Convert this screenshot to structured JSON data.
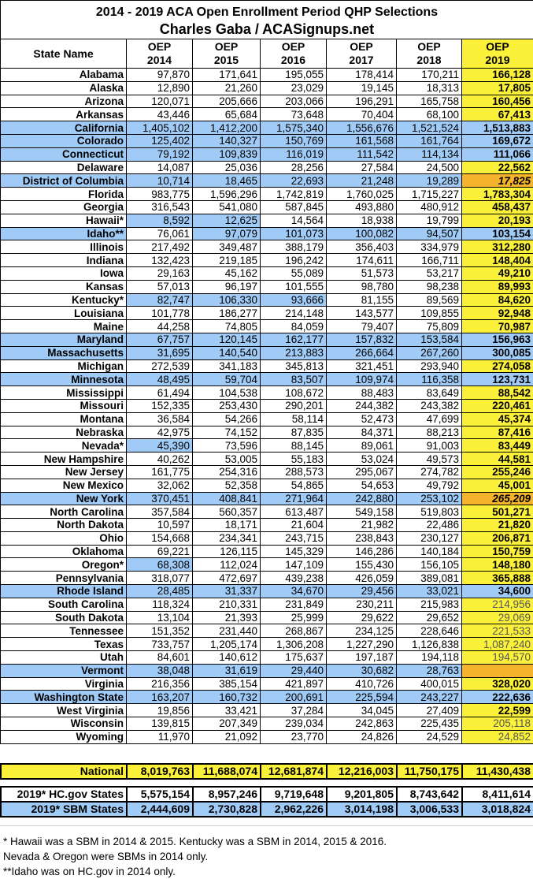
{
  "title": "2014 - 2019 ACA Open Enrollment Period QHP Selections",
  "subtitle": "Charles Gaba / ACASignups.net",
  "colors": {
    "sbm_blue": "#a0cbf7",
    "highlight_yellow": "#fbf13a",
    "estimate_orange": "#f6b42e"
  },
  "columns": [
    "State Name",
    "OEP 2014",
    "OEP 2015",
    "OEP 2016",
    "OEP 2017",
    "OEP 2018",
    "OEP 2019"
  ],
  "rows": [
    {
      "state": "Alabama",
      "v": [
        "97,870",
        "171,641",
        "195,055",
        "178,414",
        "170,211",
        "166,128"
      ],
      "s2019": "bold"
    },
    {
      "state": "Alaska",
      "v": [
        "12,890",
        "21,260",
        "23,029",
        "19,145",
        "18,313",
        "17,805"
      ],
      "s2019": "bold"
    },
    {
      "state": "Arizona",
      "v": [
        "120,071",
        "205,666",
        "203,066",
        "196,291",
        "165,758",
        "160,456"
      ],
      "s2019": "bold"
    },
    {
      "state": "Arkansas",
      "v": [
        "43,446",
        "65,684",
        "73,648",
        "70,404",
        "68,100",
        "67,413"
      ],
      "s2019": "bold"
    },
    {
      "state": "California",
      "v": [
        "1,405,102",
        "1,412,200",
        "1,575,340",
        "1,556,676",
        "1,521,524",
        "1,513,883"
      ],
      "sbm": true,
      "s2019": "sbm"
    },
    {
      "state": "Colorado",
      "v": [
        "125,402",
        "140,327",
        "150,769",
        "161,568",
        "161,764",
        "169,672"
      ],
      "sbm": true,
      "s2019": "sbm"
    },
    {
      "state": "Connecticut",
      "v": [
        "79,192",
        "109,839",
        "116,019",
        "111,542",
        "114,134",
        "111,066"
      ],
      "sbm": true,
      "s2019": "sbm"
    },
    {
      "state": "Delaware",
      "v": [
        "14,087",
        "25,036",
        "28,256",
        "27,584",
        "24,500",
        "22,562"
      ],
      "s2019": "bold"
    },
    {
      "state": "District of Columbia",
      "v": [
        "10,714",
        "18,465",
        "22,693",
        "21,248",
        "19,289",
        "17,825"
      ],
      "sbm": true,
      "s2019": "orange"
    },
    {
      "state": "Florida",
      "v": [
        "983,775",
        "1,596,296",
        "1,742,819",
        "1,760,025",
        "1,715,227",
        "1,783,304"
      ],
      "s2019": "bold"
    },
    {
      "state": "Georgia",
      "v": [
        "316,543",
        "541,080",
        "587,845",
        "493,880",
        "480,912",
        "458,437"
      ],
      "s2019": "bold"
    },
    {
      "state": "Hawaii*",
      "v": [
        "8,592",
        "12,625",
        "14,564",
        "18,938",
        "19,799",
        "20,193"
      ],
      "sbm_years": [
        0,
        1
      ],
      "s2019": "bold"
    },
    {
      "state": "Idaho**",
      "v": [
        "76,061",
        "97,079",
        "101,073",
        "100,082",
        "94,507",
        "103,154"
      ],
      "sbm_name": true,
      "sbm_years": [
        1,
        2,
        3,
        4
      ],
      "s2019": "sbm"
    },
    {
      "state": "Illinois",
      "v": [
        "217,492",
        "349,487",
        "388,179",
        "356,403",
        "334,979",
        "312,280"
      ],
      "s2019": "bold"
    },
    {
      "state": "Indiana",
      "v": [
        "132,423",
        "219,185",
        "196,242",
        "174,611",
        "166,711",
        "148,404"
      ],
      "s2019": "bold"
    },
    {
      "state": "Iowa",
      "v": [
        "29,163",
        "45,162",
        "55,089",
        "51,573",
        "53,217",
        "49,210"
      ],
      "s2019": "bold"
    },
    {
      "state": "Kansas",
      "v": [
        "57,013",
        "96,197",
        "101,555",
        "98,780",
        "98,238",
        "89,993"
      ],
      "s2019": "bold"
    },
    {
      "state": "Kentucky*",
      "v": [
        "82,747",
        "106,330",
        "93,666",
        "81,155",
        "89,569",
        "84,620"
      ],
      "sbm_years": [
        0,
        1,
        2
      ],
      "s2019": "bold"
    },
    {
      "state": "Louisiana",
      "v": [
        "101,778",
        "186,277",
        "214,148",
        "143,577",
        "109,855",
        "92,948"
      ],
      "s2019": "bold"
    },
    {
      "state": "Maine",
      "v": [
        "44,258",
        "74,805",
        "84,059",
        "79,407",
        "75,809",
        "70,987"
      ],
      "s2019": "bold"
    },
    {
      "state": "Maryland",
      "v": [
        "67,757",
        "120,145",
        "162,177",
        "157,832",
        "153,584",
        "156,963"
      ],
      "sbm": true,
      "s2019": "sbm"
    },
    {
      "state": "Massachusetts",
      "v": [
        "31,695",
        "140,540",
        "213,883",
        "266,664",
        "267,260",
        "300,085"
      ],
      "sbm": true,
      "s2019": "sbm"
    },
    {
      "state": "Michigan",
      "v": [
        "272,539",
        "341,183",
        "345,813",
        "321,451",
        "293,940",
        "274,058"
      ],
      "s2019": "bold"
    },
    {
      "state": "Minnesota",
      "v": [
        "48,495",
        "59,704",
        "83,507",
        "109,974",
        "116,358",
        "123,731"
      ],
      "sbm": true,
      "s2019": "sbm"
    },
    {
      "state": "Mississippi",
      "v": [
        "61,494",
        "104,538",
        "108,672",
        "88,483",
        "83,649",
        "88,542"
      ],
      "s2019": "bold"
    },
    {
      "state": "Missouri",
      "v": [
        "152,335",
        "253,430",
        "290,201",
        "244,382",
        "243,382",
        "220,461"
      ],
      "s2019": "bold"
    },
    {
      "state": "Montana",
      "v": [
        "36,584",
        "54,266",
        "58,114",
        "52,473",
        "47,699",
        "45,374"
      ],
      "s2019": "bold"
    },
    {
      "state": "Nebraska",
      "v": [
        "42,975",
        "74,152",
        "87,835",
        "84,371",
        "88,213",
        "87,416"
      ],
      "s2019": "bold"
    },
    {
      "state": "Nevada*",
      "v": [
        "45,390",
        "73,596",
        "88,145",
        "89,061",
        "91,003",
        "83,449"
      ],
      "sbm_years": [
        0
      ],
      "s2019": "bold"
    },
    {
      "state": "New Hampshire",
      "v": [
        "40,262",
        "53,005",
        "55,183",
        "53,024",
        "49,573",
        "44,581"
      ],
      "s2019": "bold"
    },
    {
      "state": "New Jersey",
      "v": [
        "161,775",
        "254,316",
        "288,573",
        "295,067",
        "274,782",
        "255,246"
      ],
      "s2019": "bold"
    },
    {
      "state": "New Mexico",
      "v": [
        "32,062",
        "52,358",
        "54,865",
        "54,653",
        "49,792",
        "45,001"
      ],
      "s2019": "bold"
    },
    {
      "state": "New York",
      "v": [
        "370,451",
        "408,841",
        "271,964",
        "242,880",
        "253,102",
        "265,209"
      ],
      "sbm": true,
      "s2019": "orange"
    },
    {
      "state": "North Carolina",
      "v": [
        "357,584",
        "560,357",
        "613,487",
        "549,158",
        "519,803",
        "501,271"
      ],
      "s2019": "bold"
    },
    {
      "state": "North Dakota",
      "v": [
        "10,597",
        "18,171",
        "21,604",
        "21,982",
        "22,486",
        "21,820"
      ],
      "s2019": "bold"
    },
    {
      "state": "Ohio",
      "v": [
        "154,668",
        "234,341",
        "243,715",
        "238,843",
        "230,127",
        "206,871"
      ],
      "s2019": "bold"
    },
    {
      "state": "Oklahoma",
      "v": [
        "69,221",
        "126,115",
        "145,329",
        "146,286",
        "140,184",
        "150,759"
      ],
      "s2019": "bold"
    },
    {
      "state": "Oregon*",
      "v": [
        "68,308",
        "112,024",
        "147,109",
        "155,430",
        "156,105",
        "148,180"
      ],
      "sbm_years": [
        0
      ],
      "s2019": "bold"
    },
    {
      "state": "Pennsylvania",
      "v": [
        "318,077",
        "472,697",
        "439,238",
        "426,059",
        "389,081",
        "365,888"
      ],
      "s2019": "bold"
    },
    {
      "state": "Rhode Island",
      "v": [
        "28,485",
        "31,337",
        "34,670",
        "29,456",
        "33,021",
        "34,600"
      ],
      "sbm": true,
      "s2019": "sbm"
    },
    {
      "state": "South Carolina",
      "v": [
        "118,324",
        "210,331",
        "231,849",
        "230,211",
        "215,983",
        "214,956"
      ],
      "s2019": "plain"
    },
    {
      "state": "South Dakota",
      "v": [
        "13,104",
        "21,393",
        "25,999",
        "29,622",
        "29,652",
        "29,069"
      ],
      "s2019": "plain"
    },
    {
      "state": "Tennessee",
      "v": [
        "151,352",
        "231,440",
        "268,867",
        "234,125",
        "228,646",
        "221,533"
      ],
      "s2019": "plain"
    },
    {
      "state": "Texas",
      "v": [
        "733,757",
        "1,205,174",
        "1,306,208",
        "1,227,290",
        "1,126,838",
        "1,087,240"
      ],
      "s2019": "plain"
    },
    {
      "state": "Utah",
      "v": [
        "84,601",
        "140,612",
        "175,637",
        "197,187",
        "194,118",
        "194,570"
      ],
      "s2019": "plain"
    },
    {
      "state": "Vermont",
      "v": [
        "38,048",
        "31,619",
        "29,440",
        "30,682",
        "28,763",
        ""
      ],
      "sbm": true,
      "s2019": "orange"
    },
    {
      "state": "Virginia",
      "v": [
        "216,356",
        "385,154",
        "421,897",
        "410,726",
        "400,015",
        "328,020"
      ],
      "s2019": "bold"
    },
    {
      "state": "Washington State",
      "v": [
        "163,207",
        "160,732",
        "200,691",
        "225,594",
        "243,227",
        "222,636"
      ],
      "sbm": true,
      "s2019": "sbm"
    },
    {
      "state": "West Virginia",
      "v": [
        "19,856",
        "33,421",
        "37,284",
        "34,045",
        "27,409",
        "22,599"
      ],
      "s2019": "bold"
    },
    {
      "state": "Wisconsin",
      "v": [
        "139,815",
        "207,349",
        "239,034",
        "242,863",
        "225,435",
        "205,118"
      ],
      "s2019": "plain"
    },
    {
      "state": "Wyoming",
      "v": [
        "11,970",
        "21,092",
        "23,770",
        "24,826",
        "24,529",
        "24,852"
      ],
      "s2019": "plain"
    }
  ],
  "national": {
    "label": "National",
    "v": [
      "8,019,763",
      "11,688,074",
      "12,681,874",
      "12,216,003",
      "11,750,175",
      "11,430,438"
    ]
  },
  "hcgov": {
    "label": "2019* HC.gov States",
    "v": [
      "5,575,154",
      "8,957,246",
      "9,719,648",
      "9,201,805",
      "8,743,642",
      "8,411,614"
    ]
  },
  "sbm": {
    "label": "2019* SBM States",
    "v": [
      "2,444,609",
      "2,730,828",
      "2,962,226",
      "3,014,198",
      "3,006,533",
      "3,018,824"
    ]
  },
  "notes": [
    "* Hawaii was a SBM in 2014 & 2015. Kentucky was a SBM in 2014, 2015 & 2016.",
    "Nevada & Oregon were SBMs in 2014 only.",
    "**Idaho was on HC.gov in 2014 only."
  ]
}
